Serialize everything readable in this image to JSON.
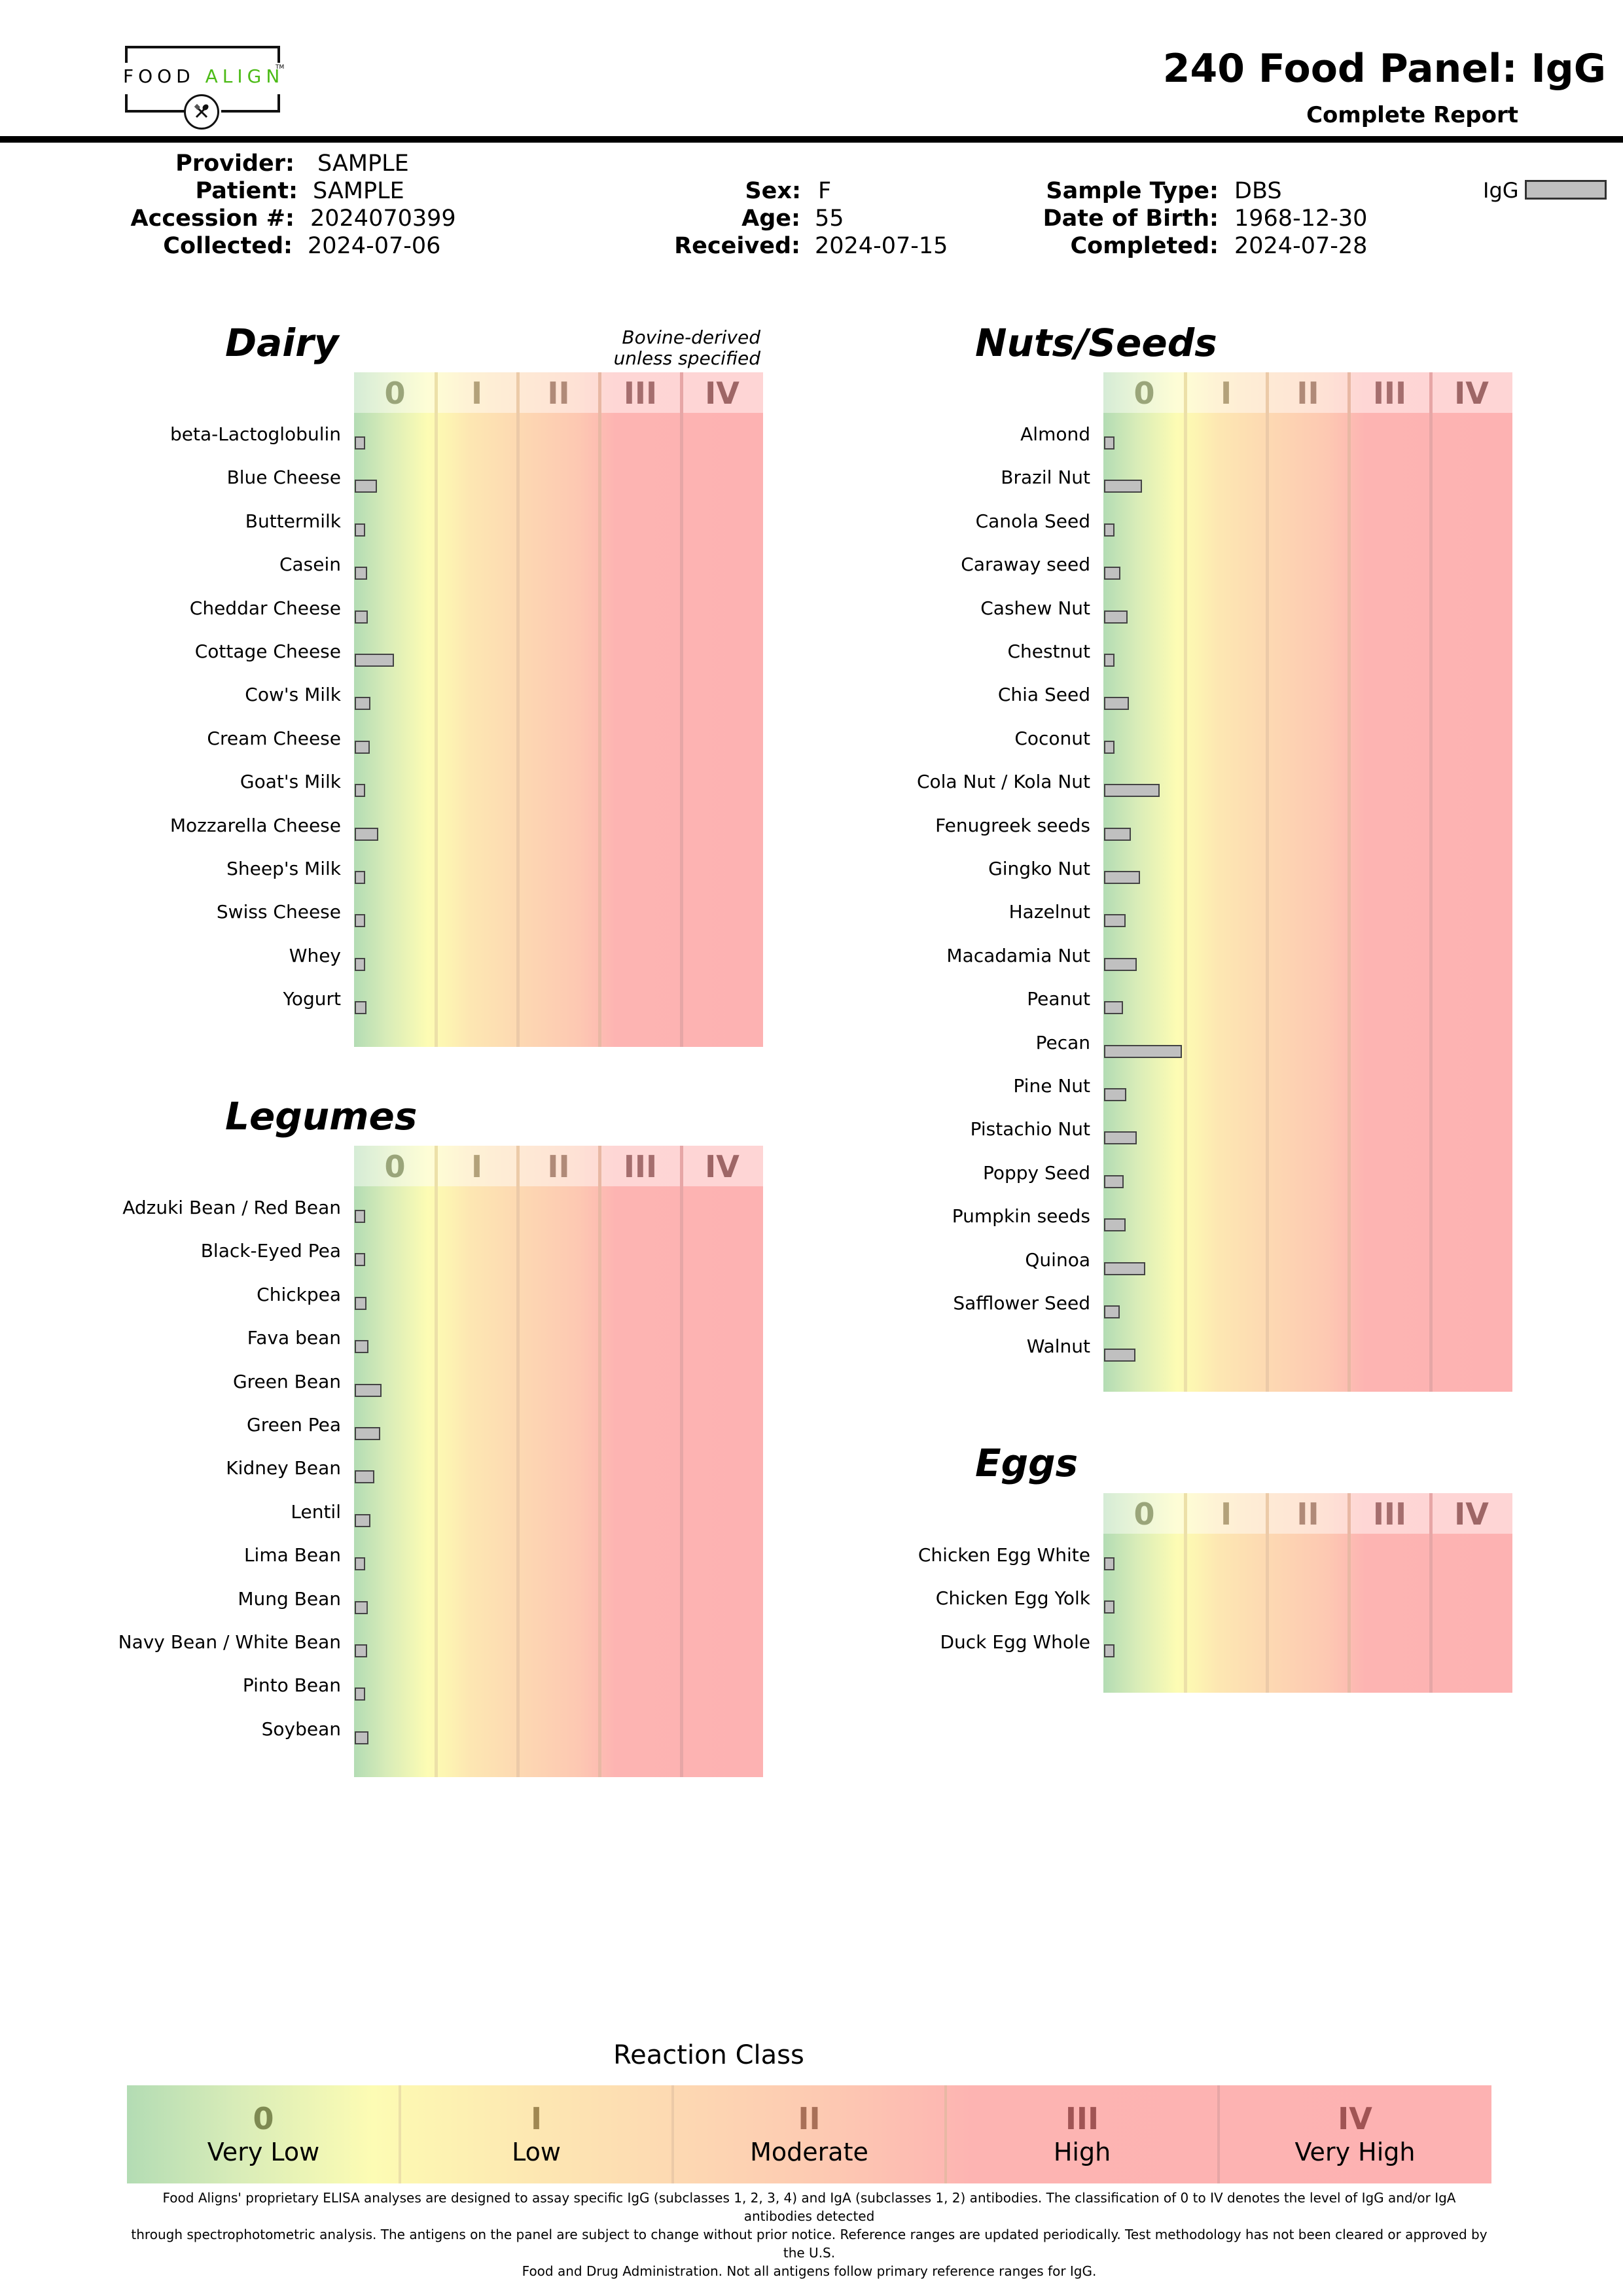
{
  "logo": {
    "word1": "FOOD",
    "word2": "ALIGN",
    "tm": "TM",
    "icon": "fork-spoon-icon",
    "brand_green": "#4cbb17"
  },
  "header": {
    "title": "240 Food Panel: IgG",
    "subtitle": "Complete Report"
  },
  "info": {
    "provider": {
      "label": "Provider:",
      "value": "SAMPLE"
    },
    "patient": {
      "label": "Patient:",
      "value": "SAMPLE"
    },
    "accession": {
      "label": "Accession #:",
      "value": "2024070399"
    },
    "collected": {
      "label": "Collected:",
      "value": "2024-07-06"
    },
    "sex": {
      "label": "Sex:",
      "value": "F"
    },
    "age": {
      "label": "Age:",
      "value": "55"
    },
    "received": {
      "label": "Received:",
      "value": "2024-07-15"
    },
    "sample_type": {
      "label": "Sample Type:",
      "value": "DBS"
    },
    "dob": {
      "label": "Date of Birth:",
      "value": "1968-12-30"
    },
    "completed": {
      "label": "Completed:",
      "value": "2024-07-28"
    }
  },
  "legend": {
    "label": "IgG",
    "color": "#c0c0c0"
  },
  "class_labels": [
    "0",
    "I",
    "II",
    "III",
    "IV"
  ],
  "class_label_colors": [
    "#9aa57a",
    "#b3a17a",
    "#b08a78",
    "#a56e6e",
    "#9e6666"
  ],
  "chart_data": [
    {
      "type": "bar",
      "title": "Dairy",
      "note": [
        "Bovine-derived",
        "unless specified"
      ],
      "xlabel": "Reaction Class",
      "x_tick_labels": [
        "0",
        "I",
        "II",
        "III",
        "IV"
      ],
      "xlim": [
        0,
        5
      ],
      "series": [
        {
          "name": "IgG",
          "color": "#c0c0c0"
        }
      ],
      "categories": [
        "beta-Lactoglobulin",
        "Blue Cheese",
        "Buttermilk",
        "Casein",
        "Cheddar Cheese",
        "Cottage Cheese",
        "Cow's Milk",
        "Cream Cheese",
        "Goat's Milk",
        "Mozzarella Cheese",
        "Sheep's Milk",
        "Swiss Cheese",
        "Whey",
        "Yogurt"
      ],
      "values": [
        0.1,
        0.27,
        0.11,
        0.15,
        0.16,
        0.48,
        0.19,
        0.18,
        0.1,
        0.29,
        0.1,
        0.1,
        0.1,
        0.14
      ]
    },
    {
      "type": "bar",
      "title": "Legumes",
      "xlabel": "Reaction Class",
      "x_tick_labels": [
        "0",
        "I",
        "II",
        "III",
        "IV"
      ],
      "xlim": [
        0,
        5
      ],
      "series": [
        {
          "name": "IgG",
          "color": "#c0c0c0"
        }
      ],
      "categories": [
        "Adzuki Bean / Red Bean",
        "Black-Eyed Pea",
        "Chickpea",
        "Fava bean",
        "Green Bean",
        "Green Pea",
        "Kidney Bean",
        "Lentil",
        "Lima Bean",
        "Mung Bean",
        "Navy Bean / White Bean",
        "Pinto Bean",
        "Soybean"
      ],
      "values": [
        0.13,
        0.12,
        0.14,
        0.17,
        0.33,
        0.31,
        0.24,
        0.19,
        0.11,
        0.16,
        0.15,
        0.12,
        0.17
      ]
    },
    {
      "type": "bar",
      "title": "Nuts/Seeds",
      "xlabel": "Reaction Class",
      "x_tick_labels": [
        "0",
        "I",
        "II",
        "III",
        "IV"
      ],
      "xlim": [
        0,
        5
      ],
      "series": [
        {
          "name": "IgG",
          "color": "#c0c0c0"
        }
      ],
      "categories": [
        "Almond",
        "Brazil Nut",
        "Canola Seed",
        "Caraway seed",
        "Cashew Nut",
        "Chestnut",
        "Chia Seed",
        "Coconut",
        "Cola Nut / Kola Nut",
        "Fenugreek seeds",
        "Gingko Nut",
        "Hazelnut",
        "Macadamia Nut",
        "Peanut",
        "Pecan",
        "Pine Nut",
        "Pistachio Nut",
        "Poppy Seed",
        "Pumpkin seeds",
        "Quinoa",
        "Safflower Seed",
        "Walnut"
      ],
      "values": [
        0.1,
        0.46,
        0.1,
        0.2,
        0.29,
        0.1,
        0.3,
        0.13,
        0.68,
        0.33,
        0.44,
        0.26,
        0.4,
        0.23,
        0.95,
        0.27,
        0.4,
        0.24,
        0.26,
        0.5,
        0.19,
        0.38
      ]
    },
    {
      "type": "bar",
      "title": "Eggs",
      "xlabel": "Reaction Class",
      "x_tick_labels": [
        "0",
        "I",
        "II",
        "III",
        "IV"
      ],
      "xlim": [
        0,
        5
      ],
      "series": [
        {
          "name": "IgG",
          "color": "#c0c0c0"
        }
      ],
      "categories": [
        "Chicken Egg White",
        "Chicken Egg Yolk",
        "Duck Egg Whole"
      ],
      "values": [
        0.1,
        0.1,
        0.1
      ]
    }
  ],
  "reaction_class": {
    "title": "Reaction Class",
    "classes": [
      {
        "num": "0",
        "name": "Very Low",
        "color": "#7e8a52"
      },
      {
        "num": "I",
        "name": "Low",
        "color": "#a08852"
      },
      {
        "num": "II",
        "name": "Moderate",
        "color": "#a87058"
      },
      {
        "num": "III",
        "name": "High",
        "color": "#a05454"
      },
      {
        "num": "IV",
        "name": "Very High",
        "color": "#a05454"
      }
    ]
  },
  "disclaimer": [
    "Food Aligns' proprietary ELISA analyses are designed to assay specific IgG (subclasses 1, 2, 3, 4) and IgA (subclasses 1, 2) antibodies. The classification of 0 to IV denotes the level of IgG and/or IgA antibodies detected",
    "through spectrophotometric analysis. The antigens on the panel are subject to change without prior notice. Reference ranges are updated periodically. Test methodology has not been cleared or approved by the U.S.",
    "Food and Drug Administration. Not all antigens follow primary reference ranges for IgG."
  ]
}
